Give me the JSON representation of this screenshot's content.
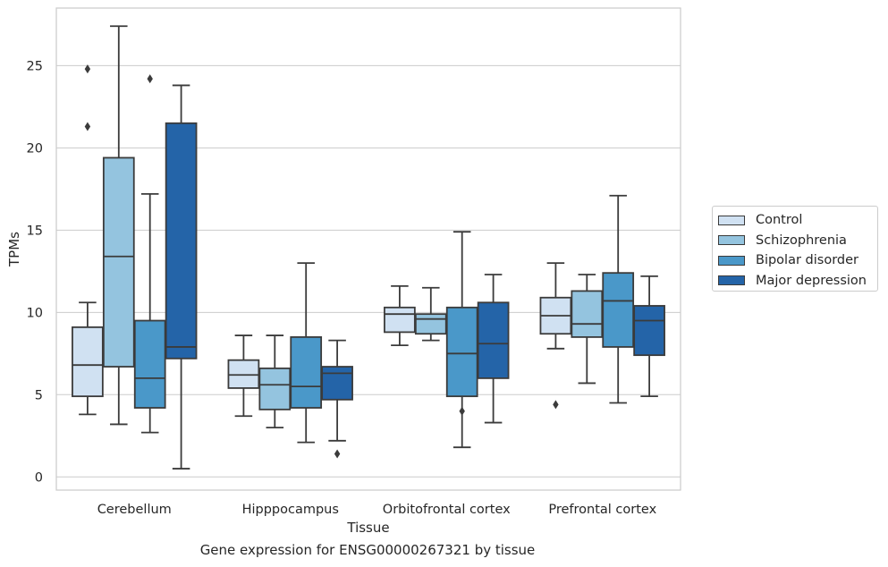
{
  "chart_data": {
    "type": "box",
    "xlabel": "Tissue",
    "ylabel": "TPMs",
    "ylim": [
      -0.8,
      28.5
    ],
    "yticks": [
      0,
      5,
      10,
      15,
      20,
      25
    ],
    "grid": "horizontal",
    "legend_placement": "right",
    "categories": [
      "Cerebellum",
      "Hipppocampus",
      "Orbitofrontal cortex",
      "Prefrontal cortex"
    ],
    "series": [
      {
        "name": "Control",
        "color": "#d0e1f2",
        "boxes": [
          {
            "whislo": 3.8,
            "q1": 4.9,
            "med": 6.8,
            "q3": 9.1,
            "whishi": 10.6,
            "fliers": [
              21.3,
              24.8
            ]
          },
          {
            "whislo": 3.7,
            "q1": 5.4,
            "med": 6.2,
            "q3": 7.1,
            "whishi": 8.6,
            "fliers": []
          },
          {
            "whislo": 8.0,
            "q1": 8.8,
            "med": 9.9,
            "q3": 10.3,
            "whishi": 11.6,
            "fliers": []
          },
          {
            "whislo": 7.8,
            "q1": 8.7,
            "med": 9.8,
            "q3": 10.9,
            "whishi": 13.0,
            "fliers": [
              4.4
            ]
          }
        ]
      },
      {
        "name": "Schizophrenia",
        "color": "#94c4df",
        "boxes": [
          {
            "whislo": 3.2,
            "q1": 6.7,
            "med": 13.4,
            "q3": 19.4,
            "whishi": 27.4,
            "fliers": []
          },
          {
            "whislo": 3.0,
            "q1": 4.1,
            "med": 5.6,
            "q3": 6.6,
            "whishi": 8.6,
            "fliers": []
          },
          {
            "whislo": 8.3,
            "q1": 8.7,
            "med": 9.6,
            "q3": 9.9,
            "whishi": 11.5,
            "fliers": []
          },
          {
            "whislo": 5.7,
            "q1": 8.5,
            "med": 9.3,
            "q3": 11.3,
            "whishi": 12.3,
            "fliers": []
          }
        ]
      },
      {
        "name": "Bipolar disorder",
        "color": "#4a98c9",
        "boxes": [
          {
            "whislo": 2.7,
            "q1": 4.2,
            "med": 6.0,
            "q3": 9.5,
            "whishi": 17.2,
            "fliers": [
              24.2
            ]
          },
          {
            "whislo": 2.1,
            "q1": 4.2,
            "med": 5.5,
            "q3": 8.5,
            "whishi": 13.0,
            "fliers": []
          },
          {
            "whislo": 1.8,
            "q1": 4.9,
            "med": 7.5,
            "q3": 10.3,
            "whishi": 14.9,
            "fliers": [
              4.0
            ]
          },
          {
            "whislo": 4.5,
            "q1": 7.9,
            "med": 10.7,
            "q3": 12.4,
            "whishi": 17.1,
            "fliers": []
          }
        ]
      },
      {
        "name": "Major depression",
        "color": "#2464a8",
        "boxes": [
          {
            "whislo": 0.5,
            "q1": 7.2,
            "med": 7.9,
            "q3": 21.5,
            "whishi": 23.8,
            "fliers": []
          },
          {
            "whislo": 2.2,
            "q1": 4.7,
            "med": 6.3,
            "q3": 6.7,
            "whishi": 8.3,
            "fliers": [
              1.4
            ]
          },
          {
            "whislo": 3.3,
            "q1": 6.0,
            "med": 8.1,
            "q3": 10.6,
            "whishi": 12.3,
            "fliers": []
          },
          {
            "whislo": 4.9,
            "q1": 7.4,
            "med": 9.5,
            "q3": 10.4,
            "whishi": 12.2,
            "fliers": []
          }
        ]
      }
    ]
  },
  "caption": "Gene expression for ENSG00000267321 by tissue"
}
